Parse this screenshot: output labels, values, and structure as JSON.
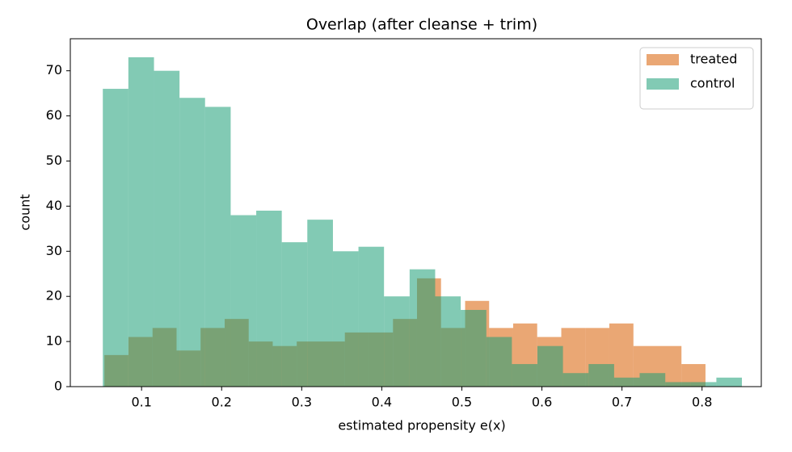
{
  "chart_data": {
    "type": "histogram",
    "title": "Overlap (after cleanse + trim)",
    "x_label": "estimated propensity e(x)",
    "y_label": "count",
    "xlim": [
      0.011,
      0.874
    ],
    "ylim": [
      0,
      77.1
    ],
    "xticks": [
      0.1,
      0.2,
      0.3,
      0.4,
      0.5,
      0.6,
      0.7,
      0.8
    ],
    "yticks": [
      0,
      10,
      20,
      30,
      40,
      50,
      60,
      70
    ],
    "alpha": 0.55,
    "legend": "upper right",
    "series": [
      {
        "name": "treated",
        "color": "#d95f02",
        "bins": [
          0.0536,
          0.0836,
          0.1137,
          0.1437,
          0.1737,
          0.2038,
          0.2338,
          0.2638,
          0.2938,
          0.3239,
          0.3539,
          0.3839,
          0.414,
          0.444,
          0.474,
          0.5041,
          0.5341,
          0.5641,
          0.5941,
          0.6242,
          0.6542,
          0.6842,
          0.7143,
          0.7443,
          0.7743,
          0.8043
        ],
        "values": [
          7,
          11,
          13,
          8,
          13,
          15,
          10,
          9,
          10,
          10,
          12,
          12,
          15,
          24,
          13,
          19,
          13,
          14,
          11,
          13,
          13,
          14,
          9,
          9,
          5
        ]
      },
      {
        "name": "control",
        "color": "#1b9e77",
        "bins": [
          0.0516,
          0.0835,
          0.1155,
          0.1474,
          0.1793,
          0.2113,
          0.2432,
          0.2751,
          0.307,
          0.339,
          0.3709,
          0.4028,
          0.4348,
          0.4667,
          0.4986,
          0.5306,
          0.5625,
          0.5944,
          0.6263,
          0.6583,
          0.6902,
          0.7221,
          0.7541,
          0.786,
          0.8179,
          0.8498
        ],
        "values": [
          66,
          73,
          70,
          64,
          62,
          38,
          39,
          32,
          37,
          30,
          31,
          20,
          26,
          20,
          17,
          11,
          5,
          9,
          3,
          5,
          2,
          3,
          1,
          1,
          2
        ]
      }
    ]
  }
}
